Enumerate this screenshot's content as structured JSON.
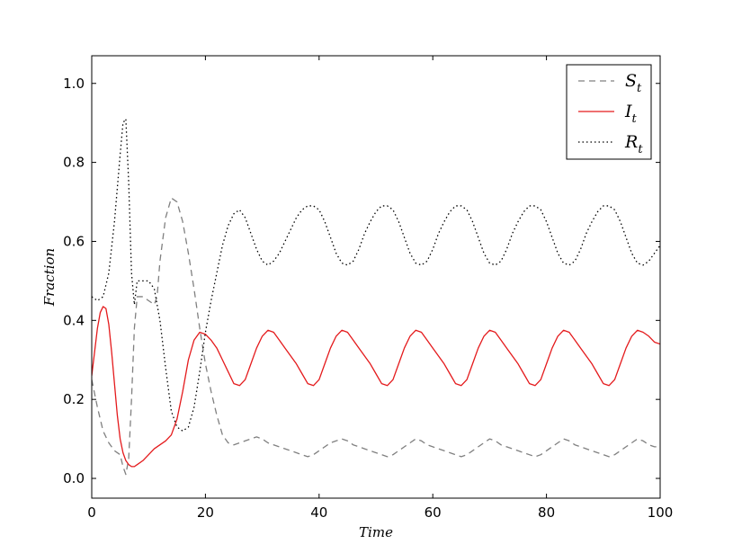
{
  "chart_data": {
    "type": "line",
    "title": "",
    "xlabel": "Time",
    "ylabel": "Fraction",
    "xlim": [
      0,
      100
    ],
    "ylim": [
      -0.05,
      1.07
    ],
    "xticks": [
      0,
      20,
      40,
      60,
      80,
      100
    ],
    "xtick_labels": [
      "0",
      "20",
      "40",
      "60",
      "80",
      "100"
    ],
    "yticks": [
      0.0,
      0.2,
      0.4,
      0.6,
      0.8,
      1.0
    ],
    "ytick_labels": [
      "0.0",
      "0.2",
      "0.4",
      "0.6",
      "0.8",
      "1.0"
    ],
    "grid": false,
    "legend_position": "top-right",
    "series": [
      {
        "name": "S_t",
        "label_main": "S",
        "label_sub": "t",
        "color": "#808080",
        "style": "dashed",
        "points": [
          [
            0,
            0.25
          ],
          [
            1,
            0.18
          ],
          [
            2,
            0.12
          ],
          [
            3,
            0.09
          ],
          [
            4,
            0.07
          ],
          [
            5,
            0.06
          ],
          [
            5.5,
            0.03
          ],
          [
            6,
            0.01
          ],
          [
            6.5,
            0.05
          ],
          [
            7,
            0.2
          ],
          [
            7.5,
            0.38
          ],
          [
            8,
            0.46
          ],
          [
            9,
            0.46
          ],
          [
            10,
            0.45
          ],
          [
            11,
            0.44
          ],
          [
            11.5,
            0.46
          ],
          [
            12,
            0.55
          ],
          [
            13,
            0.66
          ],
          [
            14,
            0.71
          ],
          [
            15,
            0.7
          ],
          [
            16,
            0.65
          ],
          [
            17,
            0.57
          ],
          [
            18,
            0.48
          ],
          [
            19,
            0.38
          ],
          [
            20,
            0.29
          ],
          [
            21,
            0.22
          ],
          [
            22,
            0.16
          ],
          [
            23,
            0.11
          ],
          [
            24,
            0.09
          ],
          [
            25,
            0.085
          ],
          [
            26,
            0.09
          ],
          [
            27,
            0.095
          ],
          [
            28,
            0.1
          ],
          [
            29,
            0.105
          ],
          [
            30,
            0.1
          ],
          [
            31,
            0.09
          ],
          [
            32,
            0.085
          ],
          [
            33,
            0.08
          ],
          [
            34,
            0.075
          ],
          [
            35,
            0.07
          ],
          [
            36,
            0.065
          ],
          [
            37,
            0.06
          ],
          [
            38,
            0.055
          ],
          [
            39,
            0.06
          ],
          [
            40,
            0.07
          ],
          [
            41,
            0.08
          ],
          [
            42,
            0.09
          ],
          [
            43,
            0.095
          ],
          [
            44,
            0.1
          ],
          [
            45,
            0.095
          ],
          [
            46,
            0.085
          ],
          [
            47,
            0.08
          ],
          [
            48,
            0.075
          ],
          [
            49,
            0.07
          ],
          [
            50,
            0.065
          ],
          [
            51,
            0.06
          ],
          [
            52,
            0.055
          ],
          [
            53,
            0.06
          ],
          [
            54,
            0.07
          ],
          [
            55,
            0.08
          ],
          [
            56,
            0.09
          ],
          [
            57,
            0.1
          ],
          [
            58,
            0.095
          ],
          [
            59,
            0.085
          ],
          [
            60,
            0.08
          ],
          [
            61,
            0.075
          ],
          [
            62,
            0.07
          ],
          [
            63,
            0.065
          ],
          [
            64,
            0.06
          ],
          [
            65,
            0.055
          ],
          [
            66,
            0.06
          ],
          [
            67,
            0.07
          ],
          [
            68,
            0.08
          ],
          [
            69,
            0.09
          ],
          [
            70,
            0.1
          ],
          [
            71,
            0.095
          ],
          [
            72,
            0.085
          ],
          [
            73,
            0.08
          ],
          [
            74,
            0.075
          ],
          [
            75,
            0.07
          ],
          [
            76,
            0.065
          ],
          [
            77,
            0.06
          ],
          [
            78,
            0.055
          ],
          [
            79,
            0.06
          ],
          [
            80,
            0.07
          ],
          [
            81,
            0.08
          ],
          [
            82,
            0.09
          ],
          [
            83,
            0.1
          ],
          [
            84,
            0.095
          ],
          [
            85,
            0.085
          ],
          [
            86,
            0.08
          ],
          [
            87,
            0.075
          ],
          [
            88,
            0.07
          ],
          [
            89,
            0.065
          ],
          [
            90,
            0.06
          ],
          [
            91,
            0.055
          ],
          [
            92,
            0.06
          ],
          [
            93,
            0.07
          ],
          [
            94,
            0.08
          ],
          [
            95,
            0.09
          ],
          [
            96,
            0.1
          ],
          [
            97,
            0.095
          ],
          [
            98,
            0.085
          ],
          [
            99,
            0.08
          ],
          [
            100,
            0.08
          ]
        ]
      },
      {
        "name": "I_t",
        "label_main": "I",
        "label_sub": "t",
        "color": "#e41a1c",
        "style": "solid",
        "points": [
          [
            0,
            0.26
          ],
          [
            0.5,
            0.32
          ],
          [
            1,
            0.38
          ],
          [
            1.5,
            0.42
          ],
          [
            2,
            0.435
          ],
          [
            2.5,
            0.43
          ],
          [
            3,
            0.39
          ],
          [
            3.5,
            0.32
          ],
          [
            4,
            0.24
          ],
          [
            4.5,
            0.16
          ],
          [
            5,
            0.1
          ],
          [
            5.5,
            0.065
          ],
          [
            6,
            0.045
          ],
          [
            6.5,
            0.035
          ],
          [
            7,
            0.03
          ],
          [
            7.5,
            0.03
          ],
          [
            8,
            0.035
          ],
          [
            9,
            0.045
          ],
          [
            10,
            0.06
          ],
          [
            11,
            0.075
          ],
          [
            12,
            0.085
          ],
          [
            13,
            0.095
          ],
          [
            14,
            0.11
          ],
          [
            15,
            0.15
          ],
          [
            16,
            0.22
          ],
          [
            17,
            0.3
          ],
          [
            18,
            0.35
          ],
          [
            19,
            0.37
          ],
          [
            20,
            0.365
          ],
          [
            21,
            0.35
          ],
          [
            22,
            0.33
          ],
          [
            23,
            0.3
          ],
          [
            24,
            0.27
          ],
          [
            25,
            0.24
          ],
          [
            26,
            0.235
          ],
          [
            27,
            0.25
          ],
          [
            28,
            0.29
          ],
          [
            29,
            0.33
          ],
          [
            30,
            0.36
          ],
          [
            31,
            0.375
          ],
          [
            32,
            0.37
          ],
          [
            33,
            0.35
          ],
          [
            34,
            0.33
          ],
          [
            35,
            0.31
          ],
          [
            36,
            0.29
          ],
          [
            37,
            0.265
          ],
          [
            38,
            0.24
          ],
          [
            39,
            0.235
          ],
          [
            40,
            0.25
          ],
          [
            41,
            0.29
          ],
          [
            42,
            0.33
          ],
          [
            43,
            0.36
          ],
          [
            44,
            0.375
          ],
          [
            45,
            0.37
          ],
          [
            46,
            0.35
          ],
          [
            47,
            0.33
          ],
          [
            48,
            0.31
          ],
          [
            49,
            0.29
          ],
          [
            50,
            0.265
          ],
          [
            51,
            0.24
          ],
          [
            52,
            0.235
          ],
          [
            53,
            0.25
          ],
          [
            54,
            0.29
          ],
          [
            55,
            0.33
          ],
          [
            56,
            0.36
          ],
          [
            57,
            0.375
          ],
          [
            58,
            0.37
          ],
          [
            59,
            0.35
          ],
          [
            60,
            0.33
          ],
          [
            61,
            0.31
          ],
          [
            62,
            0.29
          ],
          [
            63,
            0.265
          ],
          [
            64,
            0.24
          ],
          [
            65,
            0.235
          ],
          [
            66,
            0.25
          ],
          [
            67,
            0.29
          ],
          [
            68,
            0.33
          ],
          [
            69,
            0.36
          ],
          [
            70,
            0.375
          ],
          [
            71,
            0.37
          ],
          [
            72,
            0.35
          ],
          [
            73,
            0.33
          ],
          [
            74,
            0.31
          ],
          [
            75,
            0.29
          ],
          [
            76,
            0.265
          ],
          [
            77,
            0.24
          ],
          [
            78,
            0.235
          ],
          [
            79,
            0.25
          ],
          [
            80,
            0.29
          ],
          [
            81,
            0.33
          ],
          [
            82,
            0.36
          ],
          [
            83,
            0.375
          ],
          [
            84,
            0.37
          ],
          [
            85,
            0.35
          ],
          [
            86,
            0.33
          ],
          [
            87,
            0.31
          ],
          [
            88,
            0.29
          ],
          [
            89,
            0.265
          ],
          [
            90,
            0.24
          ],
          [
            91,
            0.235
          ],
          [
            92,
            0.25
          ],
          [
            93,
            0.29
          ],
          [
            94,
            0.33
          ],
          [
            95,
            0.36
          ],
          [
            96,
            0.375
          ],
          [
            97,
            0.37
          ],
          [
            98,
            0.36
          ],
          [
            99,
            0.345
          ],
          [
            100,
            0.34
          ]
        ]
      },
      {
        "name": "R_t",
        "label_main": "R",
        "label_sub": "t",
        "color": "#000000",
        "style": "dotted",
        "points": [
          [
            0,
            0.46
          ],
          [
            1,
            0.45
          ],
          [
            2,
            0.46
          ],
          [
            3,
            0.52
          ],
          [
            4,
            0.65
          ],
          [
            5,
            0.82
          ],
          [
            5.5,
            0.9
          ],
          [
            6,
            0.91
          ],
          [
            6.5,
            0.75
          ],
          [
            7,
            0.52
          ],
          [
            7.5,
            0.44
          ],
          [
            8,
            0.5
          ],
          [
            9,
            0.5
          ],
          [
            10,
            0.5
          ],
          [
            11,
            0.48
          ],
          [
            12,
            0.4
          ],
          [
            13,
            0.28
          ],
          [
            14,
            0.17
          ],
          [
            15,
            0.13
          ],
          [
            16,
            0.12
          ],
          [
            17,
            0.13
          ],
          [
            18,
            0.18
          ],
          [
            19,
            0.27
          ],
          [
            20,
            0.37
          ],
          [
            21,
            0.45
          ],
          [
            22,
            0.52
          ],
          [
            23,
            0.59
          ],
          [
            24,
            0.64
          ],
          [
            25,
            0.67
          ],
          [
            26,
            0.68
          ],
          [
            27,
            0.66
          ],
          [
            28,
            0.62
          ],
          [
            29,
            0.58
          ],
          [
            30,
            0.55
          ],
          [
            31,
            0.54
          ],
          [
            32,
            0.55
          ],
          [
            33,
            0.57
          ],
          [
            34,
            0.6
          ],
          [
            35,
            0.63
          ],
          [
            36,
            0.66
          ],
          [
            37,
            0.68
          ],
          [
            38,
            0.69
          ],
          [
            39,
            0.69
          ],
          [
            40,
            0.68
          ],
          [
            41,
            0.65
          ],
          [
            42,
            0.61
          ],
          [
            43,
            0.57
          ],
          [
            44,
            0.545
          ],
          [
            45,
            0.54
          ],
          [
            46,
            0.55
          ],
          [
            47,
            0.58
          ],
          [
            48,
            0.62
          ],
          [
            49,
            0.65
          ],
          [
            50,
            0.675
          ],
          [
            51,
            0.69
          ],
          [
            52,
            0.69
          ],
          [
            53,
            0.68
          ],
          [
            54,
            0.65
          ],
          [
            55,
            0.61
          ],
          [
            56,
            0.57
          ],
          [
            57,
            0.545
          ],
          [
            58,
            0.54
          ],
          [
            59,
            0.55
          ],
          [
            60,
            0.58
          ],
          [
            61,
            0.62
          ],
          [
            62,
            0.65
          ],
          [
            63,
            0.675
          ],
          [
            64,
            0.69
          ],
          [
            65,
            0.69
          ],
          [
            66,
            0.68
          ],
          [
            67,
            0.65
          ],
          [
            68,
            0.61
          ],
          [
            69,
            0.57
          ],
          [
            70,
            0.545
          ],
          [
            71,
            0.54
          ],
          [
            72,
            0.55
          ],
          [
            73,
            0.58
          ],
          [
            74,
            0.62
          ],
          [
            75,
            0.65
          ],
          [
            76,
            0.675
          ],
          [
            77,
            0.69
          ],
          [
            78,
            0.69
          ],
          [
            79,
            0.68
          ],
          [
            80,
            0.65
          ],
          [
            81,
            0.61
          ],
          [
            82,
            0.57
          ],
          [
            83,
            0.545
          ],
          [
            84,
            0.54
          ],
          [
            85,
            0.55
          ],
          [
            86,
            0.58
          ],
          [
            87,
            0.62
          ],
          [
            88,
            0.65
          ],
          [
            89,
            0.675
          ],
          [
            90,
            0.69
          ],
          [
            91,
            0.69
          ],
          [
            92,
            0.68
          ],
          [
            93,
            0.65
          ],
          [
            94,
            0.61
          ],
          [
            95,
            0.57
          ],
          [
            96,
            0.545
          ],
          [
            97,
            0.54
          ],
          [
            98,
            0.55
          ],
          [
            99,
            0.57
          ],
          [
            100,
            0.59
          ]
        ]
      }
    ]
  }
}
